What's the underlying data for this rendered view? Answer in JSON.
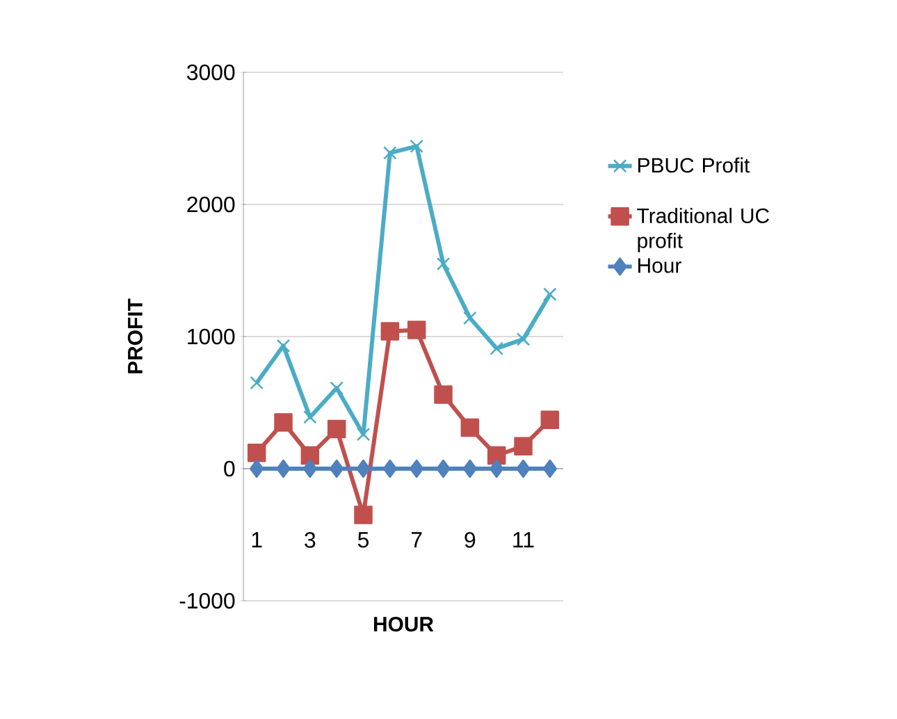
{
  "chart_data": {
    "type": "line",
    "xlabel": "HOUR",
    "ylabel": "PROFIT",
    "categories": [
      "1",
      null,
      "3",
      null,
      "5",
      null,
      "7",
      null,
      "9",
      null,
      "11",
      null
    ],
    "series": [
      {
        "name": "PBUC Profit",
        "color": "#4bacc6",
        "marker": "cross",
        "values": [
          650,
          930,
          390,
          610,
          260,
          2390,
          2440,
          1550,
          1140,
          910,
          980,
          1320
        ]
      },
      {
        "name": "Traditional UC profit",
        "color": "#c0504d",
        "marker": "square",
        "values": [
          120,
          350,
          100,
          300,
          -350,
          1040,
          1050,
          560,
          310,
          100,
          170,
          370
        ]
      },
      {
        "name": "Hour",
        "color": "#4f81bd",
        "marker": "diamond",
        "values": [
          0,
          0,
          0,
          0,
          0,
          0,
          0,
          0,
          0,
          0,
          0,
          0
        ]
      }
    ],
    "ylim": [
      -1000,
      3000
    ],
    "yticks": [
      -1000,
      0,
      1000,
      2000,
      3000
    ],
    "grid": "y",
    "legend": "right"
  }
}
